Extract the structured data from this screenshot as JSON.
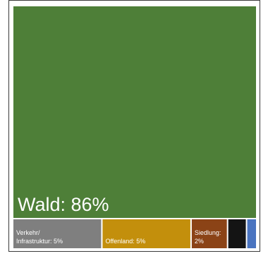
{
  "chart_data": {
    "type": "treemap",
    "items": [
      {
        "label": "Wald: 86%",
        "value": 86,
        "color": "#4e7f38"
      },
      {
        "label": "Verkehr/ Infrastruktur: 5%",
        "label_lines": [
          "Verkehr/",
          "Infrastruktur: 5%"
        ],
        "value": 5,
        "color": "#7f7f7f"
      },
      {
        "label": "Offenland: 5%",
        "label_lines": [
          "Offenland: 5%"
        ],
        "value": 5,
        "color": "#c38f0c"
      },
      {
        "label": "Siedlung: 2%",
        "label_lines": [
          "Siedlung:",
          "2%"
        ],
        "value": 2,
        "color": "#8b4316"
      },
      {
        "label": "",
        "value": 1,
        "color": "#141414"
      },
      {
        "label": "",
        "value": 0.5,
        "color": "#4a74c0"
      }
    ]
  }
}
